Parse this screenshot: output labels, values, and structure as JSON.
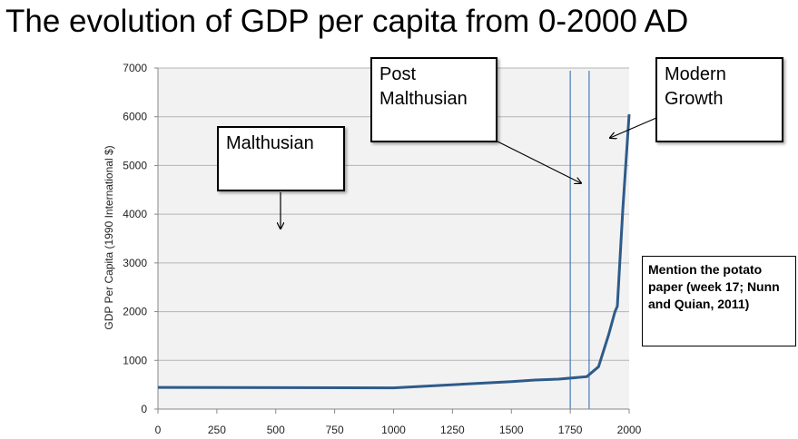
{
  "title": "The evolution of GDP per capita from 0-2000 AD",
  "annotations": {
    "malthusian": "Malthusian",
    "post_malthusian_1": "Post",
    "post_malthusian_2": "Malthusian",
    "modern_growth_1": "Modern",
    "modern_growth_2": "Growth",
    "note": "Mention the potato paper (week 17; Nunn and Quian, 2011)"
  },
  "chart_data": {
    "type": "line",
    "title": "The evolution of GDP per capita from 0-2000 AD",
    "xlabel": "",
    "ylabel": "GDP Per Capita (1990 International $)",
    "xlim": [
      0,
      2000
    ],
    "ylim": [
      0,
      7000
    ],
    "xticks": [
      0,
      250,
      500,
      750,
      1000,
      1250,
      1500,
      1750,
      2000
    ],
    "yticks": [
      0,
      1000,
      2000,
      3000,
      4000,
      5000,
      6000,
      7000
    ],
    "grid": true,
    "vertical_lines": [
      1750,
      1830
    ],
    "series": [
      {
        "color": "#2e5b8a",
        "points": [
          [
            0,
            445
          ],
          [
            1000,
            435
          ],
          [
            1500,
            565
          ],
          [
            1600,
            595
          ],
          [
            1700,
            615
          ],
          [
            1820,
            665
          ],
          [
            1870,
            870
          ],
          [
            1913,
            1525
          ],
          [
            1940,
            2000
          ],
          [
            1950,
            2110
          ],
          [
            1973,
            4090
          ],
          [
            2000,
            6050
          ]
        ]
      }
    ]
  }
}
